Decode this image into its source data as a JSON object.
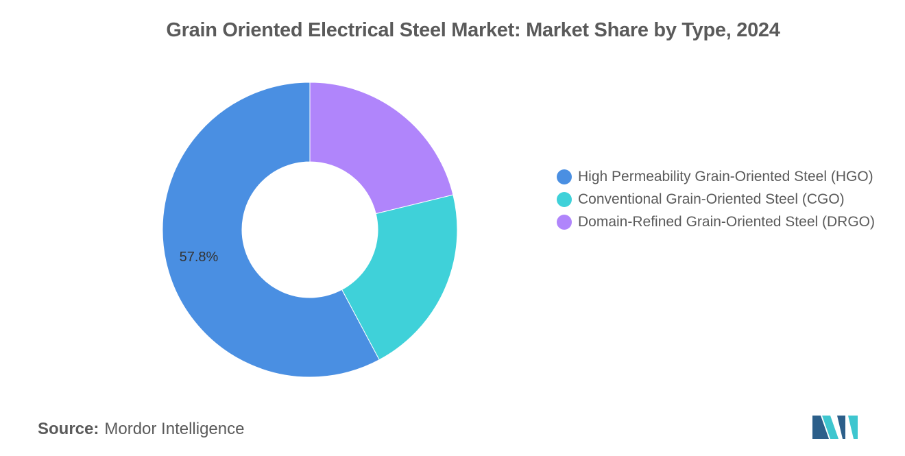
{
  "title": "Grain Oriented Electrical Steel Market: Market Share by Type, 2024",
  "source": {
    "label": "Source:",
    "value": "Mordor Intelligence"
  },
  "logo": {
    "icon": "mordor-intelligence-logo",
    "colors": [
      "#2c5f8a",
      "#3ec6cf"
    ]
  },
  "chart_data": {
    "type": "pie",
    "donut": true,
    "title": "Grain Oriented Electrical Steel Market: Market Share by Type, 2024",
    "legend_position": "right",
    "start_angle_deg": 0,
    "direction": "clockwise",
    "series": [
      {
        "name": "High Permeability Grain-Oriented Steel (HGO)",
        "value": 57.8,
        "color": "#4a8fe2",
        "data_label": "57.8%"
      },
      {
        "name": "Conventional Grain-Oriented Steel (CGO)",
        "value": 21.0,
        "color": "#3fd1d9",
        "data_label": ""
      },
      {
        "name": "Domain-Refined Grain-Oriented Steel (DRGO)",
        "value": 21.2,
        "color": "#b085fb",
        "data_label": ""
      }
    ]
  }
}
